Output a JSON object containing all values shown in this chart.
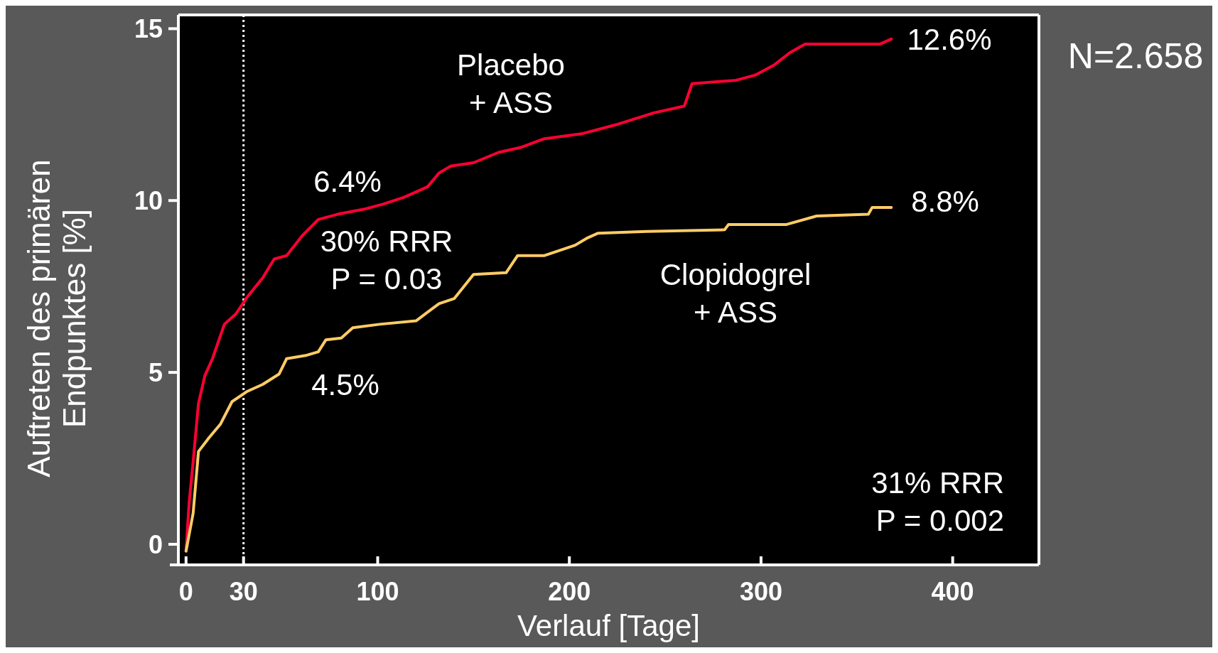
{
  "chart_data": {
    "type": "line",
    "xlabel": "Verlauf [Tage]",
    "ylabel": "Auftreten des primären\nEndpunktes [%]",
    "xlim": [
      -4,
      445
    ],
    "ylim": [
      -0.6,
      15.4
    ],
    "xticks": [
      0,
      30,
      100,
      200,
      300,
      400
    ],
    "yticks": [
      0,
      5,
      10,
      15
    ],
    "grid": false,
    "ref_lines": [
      {
        "axis": "x",
        "value": 30,
        "line_style": "dotted",
        "color": "#ffffff"
      }
    ],
    "series": [
      {
        "name": "Placebo\n+ ASS",
        "color": "#ff0033",
        "x": [
          0,
          1.6,
          3.7,
          6.5,
          9.8,
          13.8,
          20,
          26,
          32,
          40,
          46,
          52.5,
          61,
          69,
          79,
          93,
          103,
          114,
          126,
          132,
          138,
          150,
          163,
          175,
          187,
          207,
          224,
          244,
          260,
          264,
          287,
          297,
          307,
          315,
          323,
          362,
          368
        ],
        "values": [
          -0.2,
          1.2,
          2.4,
          4.1,
          4.9,
          5.4,
          6.4,
          6.7,
          7.2,
          7.75,
          8.3,
          8.4,
          9.0,
          9.45,
          9.6,
          9.75,
          9.9,
          10.1,
          10.4,
          10.8,
          11.0,
          11.1,
          11.4,
          11.55,
          11.8,
          11.95,
          12.2,
          12.55,
          12.75,
          13.4,
          13.5,
          13.65,
          13.95,
          14.3,
          14.55,
          14.55,
          14.7
        ]
      },
      {
        "name": "Clopidogrel\n+ ASS",
        "color": "#ffcc66",
        "x": [
          0,
          3.7,
          6.5,
          12,
          18,
          24,
          32,
          40,
          48.5,
          52.5,
          63,
          69,
          73,
          81,
          87,
          101,
          120,
          126,
          132,
          140,
          150,
          167,
          173,
          187,
          203,
          209,
          215,
          240,
          281,
          283,
          313,
          329,
          356,
          358,
          368
        ],
        "values": [
          -0.2,
          0.9,
          2.7,
          3.1,
          3.5,
          4.15,
          4.45,
          4.65,
          4.95,
          5.4,
          5.5,
          5.6,
          5.95,
          6.0,
          6.3,
          6.4,
          6.5,
          6.75,
          7.0,
          7.15,
          7.85,
          7.9,
          8.4,
          8.4,
          8.7,
          8.9,
          9.05,
          9.1,
          9.15,
          9.3,
          9.3,
          9.55,
          9.6,
          9.8,
          9.8
        ]
      }
    ],
    "annotations": [
      "6.4%",
      "30% RRR\nP = 0.03",
      "4.5%",
      "12.6%",
      "8.8%",
      "31% RRR\nP = 0.002",
      "N=2.658"
    ]
  }
}
